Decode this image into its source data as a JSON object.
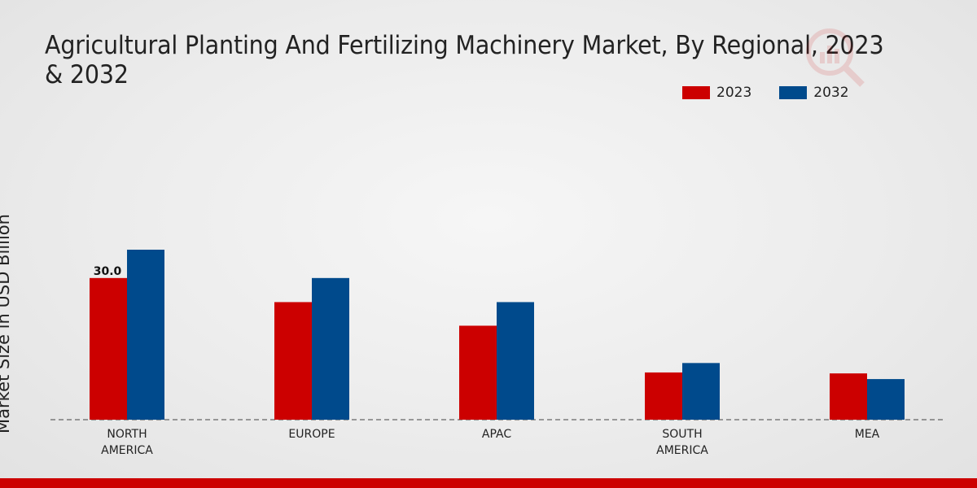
{
  "title": "Agricultural Planting And Fertilizing Machinery Market, By Regional, 2023 & 2032",
  "colors": {
    "s2023": "#cc0000",
    "s2032": "#004a8c",
    "footer": "#cc0000"
  },
  "chart_data": {
    "type": "bar",
    "title": "Agricultural Planting And Fertilizing Machinery Market, By Regional, 2023 & 2032",
    "ylabel": "Market Size in USD Billion",
    "xlabel": "",
    "categories": [
      "NORTH AMERICA",
      "EUROPE",
      "APAC",
      "SOUTH AMERICA",
      "MEA"
    ],
    "category_lines": [
      [
        "NORTH",
        "AMERICA"
      ],
      [
        "EUROPE"
      ],
      [
        "APAC"
      ],
      [
        "SOUTH",
        "AMERICA"
      ],
      [
        "MEA"
      ]
    ],
    "series": [
      {
        "name": "2023",
        "color": "#cc0000",
        "values": [
          30.0,
          24.9,
          19.9,
          10.0,
          9.8
        ]
      },
      {
        "name": "2032",
        "color": "#004a8c",
        "values": [
          36.0,
          30.0,
          24.9,
          12.0,
          8.6
        ]
      }
    ],
    "data_labels": [
      {
        "series": 0,
        "index": 0,
        "text": "30.0"
      }
    ],
    "ylim": [
      0,
      36.0
    ],
    "grid": false,
    "legend_position": "top-right",
    "baseline": "dashed"
  }
}
